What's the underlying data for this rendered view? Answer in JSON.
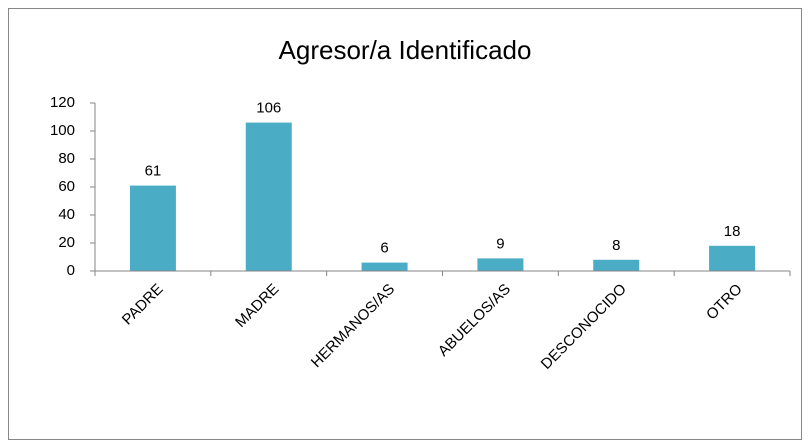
{
  "chart_data": {
    "type": "bar",
    "title": "Agresor/a Identificado",
    "categories": [
      "PADRE",
      "MADRE",
      "HERMANOS/AS",
      "ABUELOS/AS",
      "DESCONOCIDO",
      "OTRO"
    ],
    "values": [
      61,
      106,
      6,
      9,
      8,
      18
    ],
    "color": "#4bacc6",
    "ylim": [
      0,
      120
    ],
    "yticks": [
      0,
      20,
      40,
      60,
      80,
      100,
      120
    ],
    "grid": false,
    "data_labels": true
  }
}
